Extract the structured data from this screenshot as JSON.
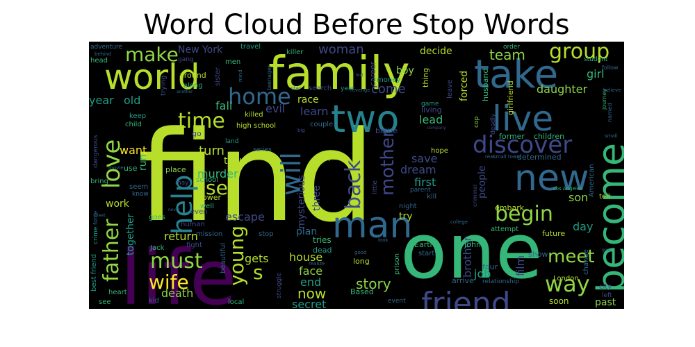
{
  "title": "Word Cloud Before Stop Words",
  "palette": {
    "background": "#000000",
    "yellow_green": "#b6de2b",
    "light_green": "#8fd744",
    "green": "#35b779",
    "teal": "#1f9e89",
    "blue_teal": "#26828e",
    "blue": "#31688e",
    "indigo": "#3e4989",
    "purple": "#482878",
    "dark_purple": "#440154",
    "yellow": "#fde725"
  },
  "words": [
    "find",
    "life",
    "one",
    "family",
    "world",
    "take",
    "two",
    "become",
    "new",
    "live",
    "friend",
    "man",
    "love",
    "help",
    "will",
    "discover",
    "home",
    "make",
    "time",
    "group",
    "woman",
    "father",
    "must",
    "wife",
    "young",
    "back",
    "begin",
    "set",
    "way",
    "turn",
    "s",
    "meet",
    "mother",
    "story",
    "now",
    "come",
    "team",
    "year",
    "old",
    "fall",
    "learn",
    "lead",
    "murder",
    "escape",
    "return",
    "death",
    "house",
    "face",
    "end",
    "secret",
    "gets",
    "job",
    "film",
    "mysterious",
    "three",
    "first",
    "dream",
    "save",
    "town",
    "people",
    "brother",
    "son",
    "daughter",
    "girl",
    "forced",
    "decide",
    "boy",
    "career",
    "thing",
    "husband",
    "girlfriend",
    "former",
    "children",
    "want",
    "run",
    "work",
    "together",
    "plan",
    "tries",
    "dead",
    "New York",
    "travel",
    "killer",
    "men",
    "sister",
    "trying",
    "around",
    "along",
    "gang",
    "head",
    "adventure",
    "behind",
    "order",
    "student",
    "follow",
    "journey",
    "believe",
    "named",
    "small",
    "cop",
    "deadly",
    "living",
    "couple",
    "evil",
    "high school",
    "killed",
    "land",
    "series",
    "put",
    "hope",
    "real",
    "small town",
    "determined",
    "American",
    "Los Angeles",
    "tell",
    "embark",
    "attempt",
    "future",
    "day",
    "criminal",
    "kill",
    "parent",
    "little",
    "night",
    "power",
    "school",
    "well",
    "even",
    "may",
    "place",
    "use",
    "movie",
    "seem",
    "know",
    "bring",
    "dangerous",
    "child",
    "keep",
    "go",
    "crime",
    "force",
    "street",
    "never",
    "goes",
    "human",
    "mission",
    "stop",
    "fight",
    "Jack",
    "best friend",
    "heart",
    "kid",
    "see",
    "local",
    "beautiful",
    "struggle",
    "realize",
    "Based",
    "good",
    "look",
    "long",
    "prison",
    "start",
    "event",
    "Earth",
    "John",
    "arrive",
    "relationship",
    "four",
    "London",
    "show",
    "change",
    "college",
    "soon",
    "city",
    "left",
    "past",
    "give",
    "race",
    "search",
    "star",
    "another",
    "revenge",
    "money",
    "lost",
    "game",
    "company",
    "big",
    "battle",
    "leave",
    "teenager",
    "year",
    "try",
    "mind"
  ]
}
